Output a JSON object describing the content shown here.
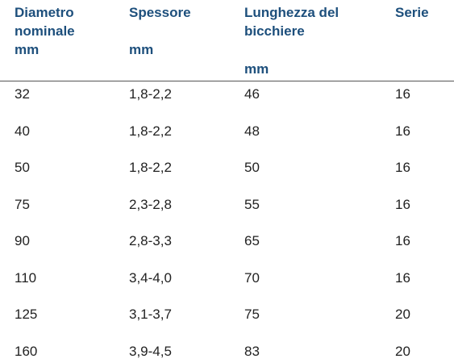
{
  "table": {
    "columns": [
      {
        "lines": [
          "Diametro",
          "nominale",
          "mm"
        ]
      },
      {
        "lines": [
          "Spessore",
          "mm"
        ]
      },
      {
        "lines": [
          "Lunghezza del",
          "bicchiere",
          "mm"
        ]
      },
      {
        "lines": [
          "Serie"
        ]
      }
    ],
    "rows": [
      [
        32,
        "1,8-2,2",
        46,
        16
      ],
      [
        40,
        "1,8-2,2",
        48,
        16
      ],
      [
        50,
        "1,8-2,2",
        50,
        16
      ],
      [
        75,
        "2,3-2,8",
        55,
        16
      ],
      [
        90,
        "2,8-3,3",
        65,
        16
      ],
      [
        110,
        "3,4-4,0",
        70,
        16
      ],
      [
        125,
        "3,1-3,7",
        75,
        20
      ],
      [
        160,
        "3,9-4,5",
        83,
        20
      ]
    ]
  }
}
